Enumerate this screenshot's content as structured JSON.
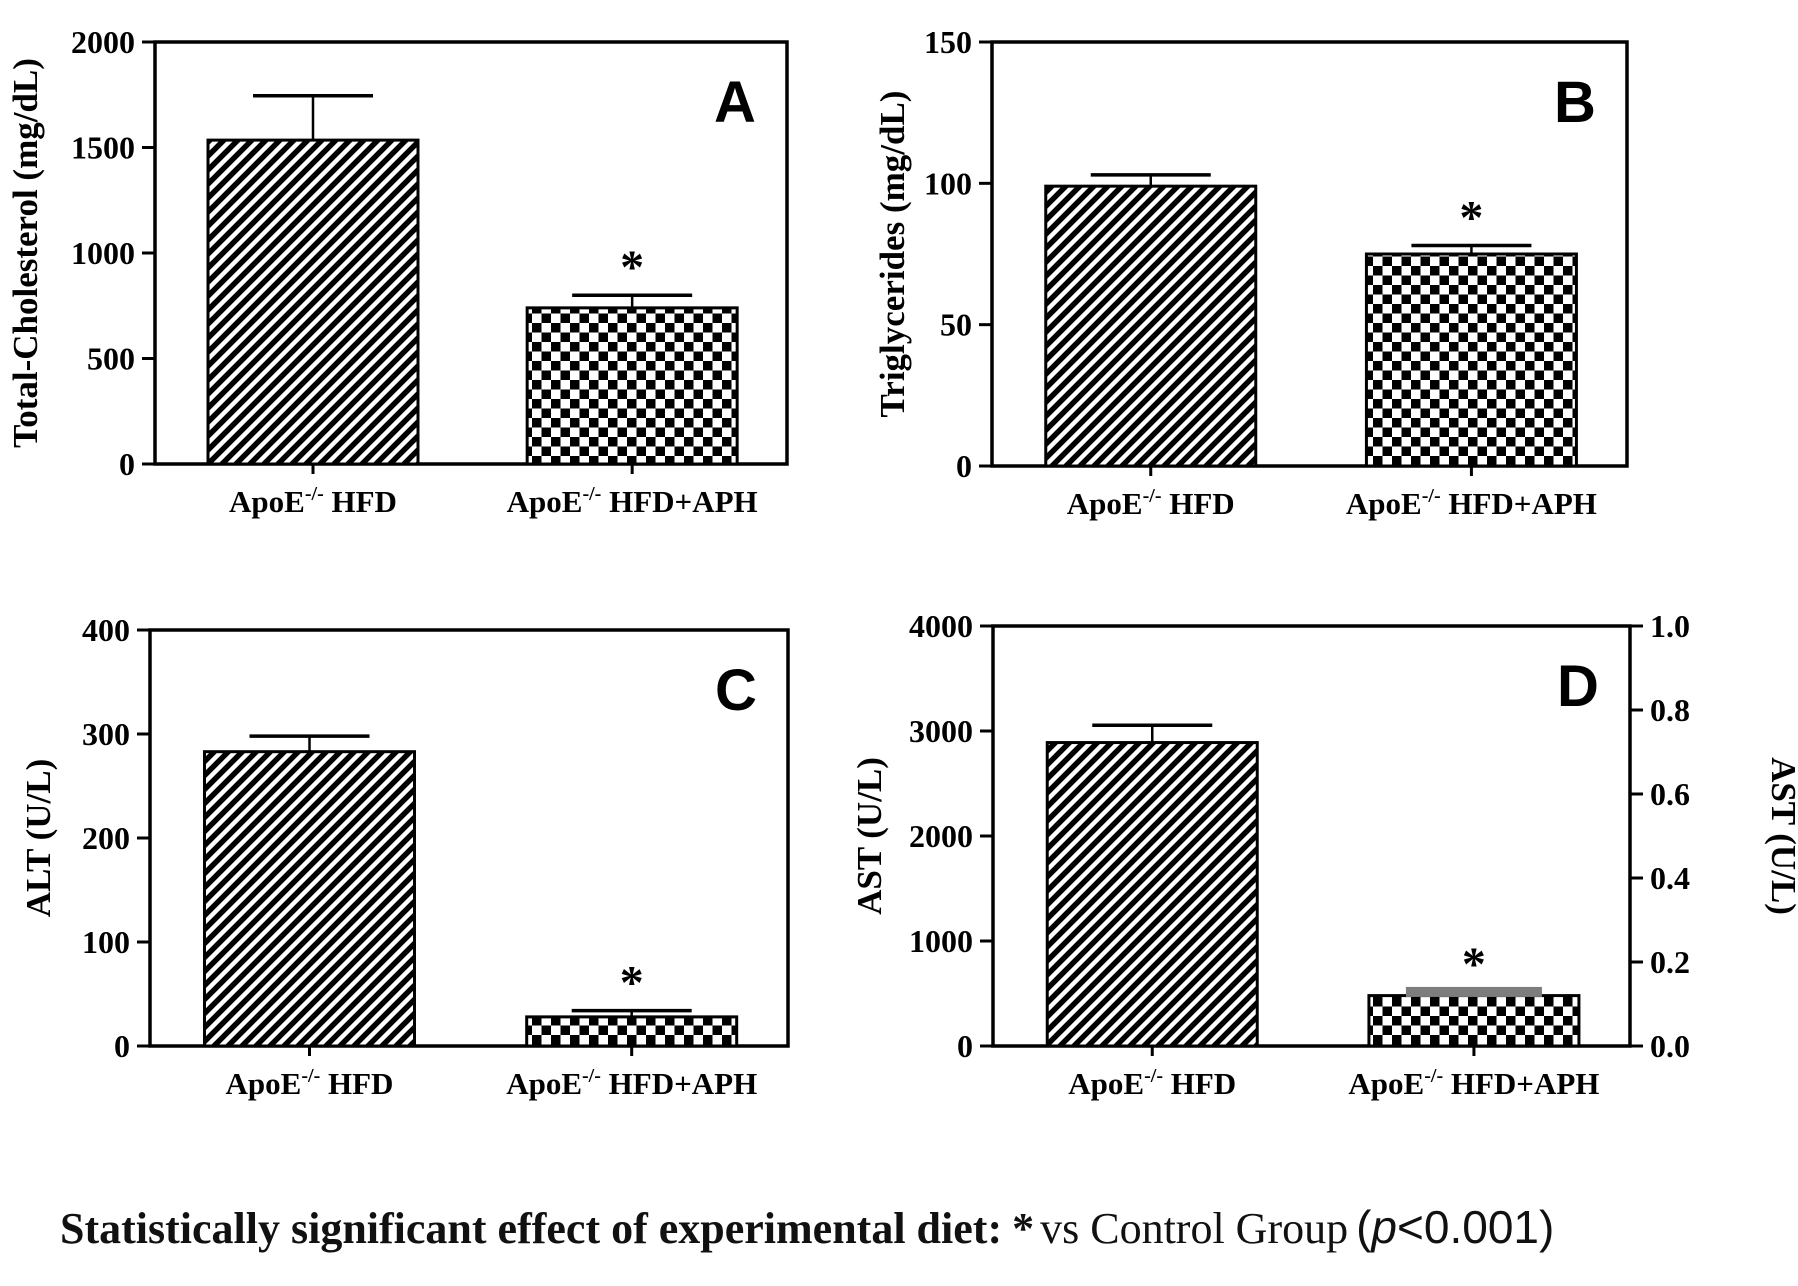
{
  "figure_title": "",
  "colors": {
    "ink": "#000000",
    "frame": "#1a1a1a",
    "gray_error_cap": "#7d7d7d",
    "background": "#ffffff"
  },
  "categories_rich": [
    {
      "pre": "ApoE",
      "sup": "-/-",
      "post": " HFD"
    },
    {
      "pre": "ApoE",
      "sup": "-/-",
      "post": " HFD+APH"
    }
  ],
  "chart_data": [
    {
      "type": "bar",
      "panel_label": "A",
      "ylabel": "Total-Cholesterol (mg/dL)",
      "xlabel": "",
      "ylim": [
        0,
        2000
      ],
      "yticks": [
        0,
        500,
        1000,
        1500,
        2000
      ],
      "grid": false,
      "legend": "none",
      "categories": [
        "ApoE-/- HFD",
        "ApoE-/- HFD+APH"
      ],
      "values": [
        1535,
        740
      ],
      "errors_plus": [
        210,
        60
      ],
      "significance": [
        "",
        "*"
      ],
      "bar_patterns": [
        "diagonal-hatch",
        "checkerboard"
      ],
      "error_cap_styles": [
        "black-line",
        "black-line"
      ]
    },
    {
      "type": "bar",
      "panel_label": "B",
      "ylabel": "Triglycerides (mg/dL)",
      "xlabel": "",
      "ylim": [
        0,
        150
      ],
      "yticks": [
        0,
        50,
        100,
        150
      ],
      "grid": false,
      "legend": "none",
      "categories": [
        "ApoE-/- HFD",
        "ApoE-/- HFD+APH"
      ],
      "values": [
        99,
        75
      ],
      "errors_plus": [
        4,
        3
      ],
      "significance": [
        "",
        "*"
      ],
      "bar_patterns": [
        "diagonal-hatch",
        "checkerboard"
      ],
      "error_cap_styles": [
        "black-line",
        "black-line"
      ]
    },
    {
      "type": "bar",
      "panel_label": "C",
      "ylabel": "ALT (U/L)",
      "xlabel": "",
      "ylim": [
        0,
        400
      ],
      "yticks": [
        0,
        100,
        200,
        300,
        400
      ],
      "grid": false,
      "legend": "none",
      "categories": [
        "ApoE-/- HFD",
        "ApoE-/- HFD+APH"
      ],
      "values": [
        283,
        28
      ],
      "errors_plus": [
        15,
        6
      ],
      "significance": [
        "",
        "*"
      ],
      "bar_patterns": [
        "diagonal-hatch",
        "checkerboard"
      ],
      "error_cap_styles": [
        "black-line",
        "black-line"
      ]
    },
    {
      "type": "bar",
      "panel_label": "D",
      "ylabel": "AST (U/L)",
      "xlabel": "",
      "ylim": [
        0,
        4000
      ],
      "yticks": [
        0,
        1000,
        2000,
        3000,
        4000
      ],
      "right_axis": {
        "label": "AST (U/L)",
        "ylim": [
          0,
          1.0
        ],
        "ytick_labels": [
          "0.0",
          "0.2",
          "0.4",
          "0.6",
          "0.8",
          "1.0"
        ]
      },
      "grid": false,
      "legend": "none",
      "categories": [
        "ApoE-/- HFD",
        "ApoE-/- HFD+APH"
      ],
      "values": [
        2890,
        480
      ],
      "errors_plus": [
        165,
        35
      ],
      "significance": [
        "",
        "*"
      ],
      "bar_patterns": [
        "diagonal-hatch",
        "checkerboard"
      ],
      "error_cap_styles": [
        "black-line",
        "gray-thick"
      ]
    }
  ],
  "caption": {
    "bold_text": "Statistically significant effect of experimental diet:",
    "star": "*",
    "normal_text": "vs Control Group",
    "p_open": "(",
    "p_italic": "p",
    "p_rest": "<0.001)"
  }
}
